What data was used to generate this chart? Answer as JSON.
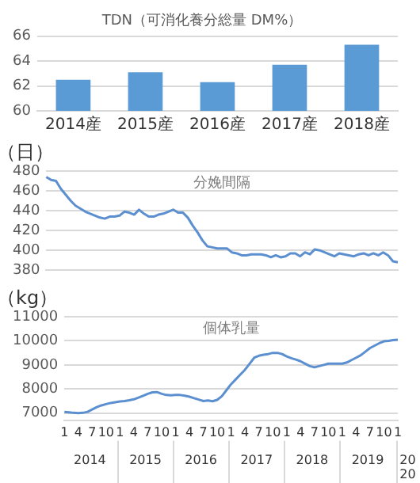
{
  "chart_data": [
    {
      "type": "bar",
      "title": "TDN（可消化養分総量 DM%）",
      "categories": [
        "2014産",
        "2015産",
        "2016産",
        "2017産",
        "2018産"
      ],
      "values": [
        62.5,
        63.1,
        62.3,
        63.7,
        65.3
      ],
      "color": "#5b9bd5",
      "ylim": [
        60,
        66
      ],
      "yticks": [
        60,
        62,
        64,
        66
      ],
      "grid": "y",
      "legend": false
    },
    {
      "type": "line",
      "title": "分娩間隔",
      "ylabel": "（日）",
      "categories": [
        null,
        null,
        null,
        null,
        null,
        null,
        null,
        null,
        null,
        null,
        null,
        null,
        null,
        null,
        null,
        null,
        null,
        null,
        null,
        null,
        null,
        null,
        null,
        null,
        null,
        null,
        null,
        null,
        null,
        null,
        null,
        null,
        null,
        null,
        null,
        null,
        null,
        null,
        null,
        null,
        null,
        null,
        null,
        null,
        null,
        null,
        null,
        null,
        null,
        null,
        null,
        null,
        null,
        null,
        null,
        null,
        null,
        null,
        null,
        null,
        null,
        null,
        null,
        null,
        null,
        null,
        null,
        null,
        null,
        null,
        null,
        null,
        null
      ],
      "values": [
        474,
        471,
        470,
        462,
        456,
        450,
        445,
        442,
        439,
        437,
        435,
        433,
        432,
        434,
        434,
        435,
        439,
        438,
        436,
        441,
        437,
        434,
        434,
        436,
        437,
        439,
        441,
        438,
        438,
        433,
        425,
        418,
        410,
        404,
        403,
        402,
        402,
        402,
        398,
        397,
        395,
        395,
        396,
        396,
        396,
        395,
        393,
        395,
        393,
        394,
        397,
        397,
        394,
        398,
        396,
        401,
        400,
        398,
        396,
        394,
        397,
        396,
        395,
        394,
        396,
        397,
        395,
        397,
        395,
        398,
        395,
        389,
        388
      ],
      "color": "#5b8fd0",
      "ylim": [
        380,
        480
      ],
      "yticks": [
        380,
        400,
        420,
        440,
        460,
        480
      ],
      "grid": "y",
      "legend": false,
      "tick_labels": "y",
      "marker": "none"
    },
    {
      "type": "line",
      "title": "個体乳量",
      "ylabel": "（kg）",
      "categories": [
        "1",
        null,
        null,
        "4",
        null,
        null,
        "7",
        null,
        null,
        "10",
        null,
        null,
        "1",
        null,
        null,
        "4",
        null,
        null,
        "7",
        null,
        null,
        "10",
        null,
        null,
        "1",
        null,
        null,
        "4",
        null,
        null,
        "7",
        null,
        null,
        "10",
        null,
        null,
        "1",
        null,
        null,
        "4",
        null,
        null,
        "7",
        null,
        null,
        "10",
        null,
        null,
        "1",
        null,
        null,
        "4",
        null,
        null,
        "7",
        null,
        null,
        "10",
        null,
        null,
        "1",
        null,
        null,
        "4",
        null,
        null,
        "7",
        null,
        null,
        "10",
        null,
        null,
        "1"
      ],
      "values": [
        7050,
        7030,
        7010,
        7000,
        7010,
        7050,
        7150,
        7250,
        7320,
        7370,
        7420,
        7450,
        7480,
        7500,
        7530,
        7570,
        7640,
        7720,
        7800,
        7860,
        7870,
        7800,
        7750,
        7740,
        7750,
        7750,
        7720,
        7680,
        7620,
        7560,
        7500,
        7520,
        7490,
        7550,
        7700,
        7950,
        8200,
        8400,
        8600,
        8800,
        9050,
        9300,
        9380,
        9420,
        9450,
        9500,
        9500,
        9450,
        9350,
        9280,
        9220,
        9150,
        9050,
        8950,
        8900,
        8950,
        9000,
        9050,
        9050,
        9050,
        9050,
        9100,
        9200,
        9300,
        9400,
        9550,
        9700,
        9800,
        9900,
        9980,
        10000,
        10030,
        10050
      ],
      "color": "#5b8fd0",
      "ylim": [
        6700,
        11000
      ],
      "yticks": [
        7000,
        8000,
        9000,
        10000,
        11000
      ],
      "grid": "y",
      "legend": false,
      "marker": "none",
      "annotations": [
        "2014",
        "2015",
        "2016",
        "2017",
        "2018",
        "2019",
        "2020"
      ]
    }
  ]
}
